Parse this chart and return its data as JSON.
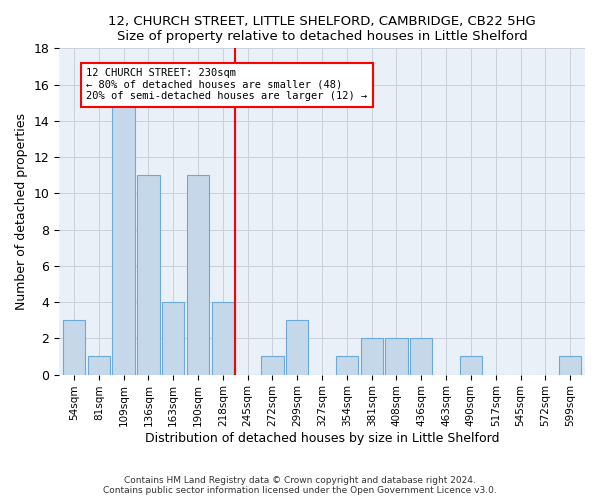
{
  "title1": "12, CHURCH STREET, LITTLE SHELFORD, CAMBRIDGE, CB22 5HG",
  "title2": "Size of property relative to detached houses in Little Shelford",
  "xlabel": "Distribution of detached houses by size in Little Shelford",
  "ylabel": "Number of detached properties",
  "footnote1": "Contains HM Land Registry data © Crown copyright and database right 2024.",
  "footnote2": "Contains public sector information licensed under the Open Government Licence v3.0.",
  "bar_labels": [
    "54sqm",
    "81sqm",
    "109sqm",
    "136sqm",
    "163sqm",
    "190sqm",
    "218sqm",
    "245sqm",
    "272sqm",
    "299sqm",
    "327sqm",
    "354sqm",
    "381sqm",
    "408sqm",
    "436sqm",
    "463sqm",
    "490sqm",
    "517sqm",
    "545sqm",
    "572sqm",
    "599sqm"
  ],
  "bar_values": [
    3,
    1,
    15,
    11,
    4,
    11,
    4,
    0,
    1,
    3,
    0,
    1,
    2,
    2,
    2,
    0,
    1,
    0,
    0,
    0,
    1
  ],
  "bar_color": "#c5d8ea",
  "bar_edge_color": "#6aaad4",
  "vline_x": 6.5,
  "vline_color": "red",
  "annotation_line1": "12 CHURCH STREET: 230sqm",
  "annotation_line2": "← 80% of detached houses are smaller (48)",
  "annotation_line3": "20% of semi-detached houses are larger (12) →",
  "annotation_box_color": "red",
  "ylim": [
    0,
    18
  ],
  "yticks": [
    0,
    2,
    4,
    6,
    8,
    10,
    12,
    14,
    16,
    18
  ],
  "bg_color": "#eaf0f7",
  "grid_color": "#c8d0da"
}
